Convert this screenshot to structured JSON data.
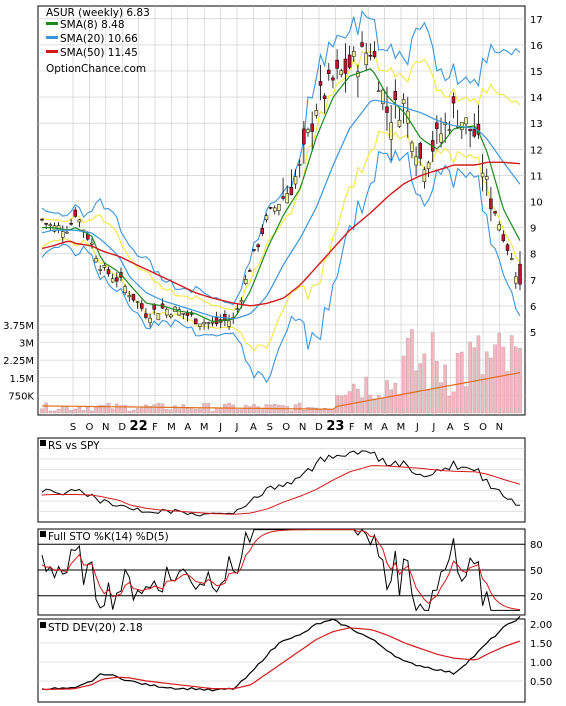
{
  "legend": {
    "ticker": "ASUR (weekly) 6.83",
    "sma8": "SMA(8) 8.48",
    "sma20": "SMA(20) 10.66",
    "sma50": "SMA(50) 11.45",
    "source": "OptionChance.com"
  },
  "colors": {
    "up": "#f4f19a",
    "down": "#c4122f",
    "sma8": "#1b8a1b",
    "sma20": "#3a96dc",
    "sma50": "#d31a1a",
    "bollinger": "#f2e84b",
    "volume": "#f1b8c0",
    "volume_avg": "#e0701a",
    "grid": "#c7c7c7"
  },
  "axes": {
    "months": [
      "S",
      "O",
      "N",
      "D",
      "22",
      "F",
      "M",
      "A",
      "M",
      "J",
      "J",
      "A",
      "S",
      "O",
      "N",
      "D",
      "23",
      "F",
      "M",
      "A",
      "M",
      "J",
      "J",
      "A",
      "S",
      "O",
      "N"
    ],
    "price_ticks": [
      "17",
      "16",
      "15",
      "14",
      "13",
      "12",
      "11",
      "10",
      "9",
      "8",
      "7",
      "6",
      "5"
    ],
    "volume_ticks": [
      "3.75M",
      "3M",
      "2.25M",
      "1.5M",
      "750K"
    ],
    "rs_title": "RS vs SPY",
    "sto_title": "Full STO %K(14) %D(5)",
    "sto_ticks": [
      "80",
      "50",
      "20"
    ],
    "std_title": "STD DEV(20) 2.18",
    "std_ticks": [
      "2.00",
      "1.50",
      "1.00",
      "0.50"
    ]
  },
  "chart_data": {
    "type": "line",
    "x": [
      9.6,
      9.8,
      10.1,
      10.2,
      10.5,
      10.7,
      11.0,
      11.2,
      11.5,
      11.8,
      12.1,
      12.4,
      12.7,
      13.1,
      13.4,
      13.7,
      14.0,
      14.3,
      14.6,
      14.9,
      15.2,
      15.6,
      15.9,
      16.2,
      16.5,
      16.8,
      17.1,
      17.5,
      17.7,
      18.0,
      18.3
    ],
    "series": [
      {
        "name": "ASUR (weekly)",
        "values": [
          9.3,
          9.0,
          9.0,
          9.6,
          8.4,
          7.4,
          7.0,
          6.5,
          5.7,
          5.9,
          5.8,
          5.5,
          5.3,
          5.5,
          7.6,
          9.4,
          10.2,
          11.2,
          13.8,
          14.6,
          15.2,
          15.9,
          13.3,
          13.8,
          11.5,
          12.4,
          13.5,
          12.5,
          10.5,
          8.7,
          6.8
        ]
      },
      {
        "name": "SMA(8)",
        "values": [
          9.0,
          9.0,
          8.9,
          9.0,
          8.7,
          7.7,
          7.3,
          6.8,
          6.1,
          6.0,
          5.8,
          5.7,
          5.4,
          5.5,
          6.6,
          8.2,
          9.5,
          10.5,
          12.5,
          14.0,
          14.8,
          15.1,
          14.0,
          13.4,
          12.4,
          12.0,
          12.8,
          12.9,
          11.9,
          9.7,
          8.5
        ]
      },
      {
        "name": "SMA(20)",
        "values": [
          8.8,
          8.9,
          8.9,
          8.9,
          8.8,
          8.5,
          7.9,
          7.1,
          6.5,
          6.2,
          6.0,
          5.8,
          5.6,
          5.5,
          5.7,
          6.4,
          7.6,
          8.6,
          9.8,
          11.4,
          12.8,
          13.9,
          13.8,
          13.6,
          13.4,
          13.1,
          12.9,
          12.8,
          12.4,
          11.5,
          10.66
        ]
      },
      {
        "name": "SMA(50)",
        "values": [
          8.2,
          8.3,
          8.5,
          8.4,
          8.3,
          8.1,
          7.9,
          7.7,
          7.4,
          7.1,
          6.8,
          6.5,
          6.3,
          6.1,
          6.0,
          6.1,
          6.3,
          6.8,
          7.5,
          8.2,
          8.9,
          9.6,
          10.2,
          10.7,
          11.0,
          11.2,
          11.4,
          11.4,
          11.5,
          11.5,
          11.45
        ]
      }
    ],
    "volume_ylim": [
      0,
      3.75
    ],
    "ylim": [
      5,
      17
    ]
  }
}
